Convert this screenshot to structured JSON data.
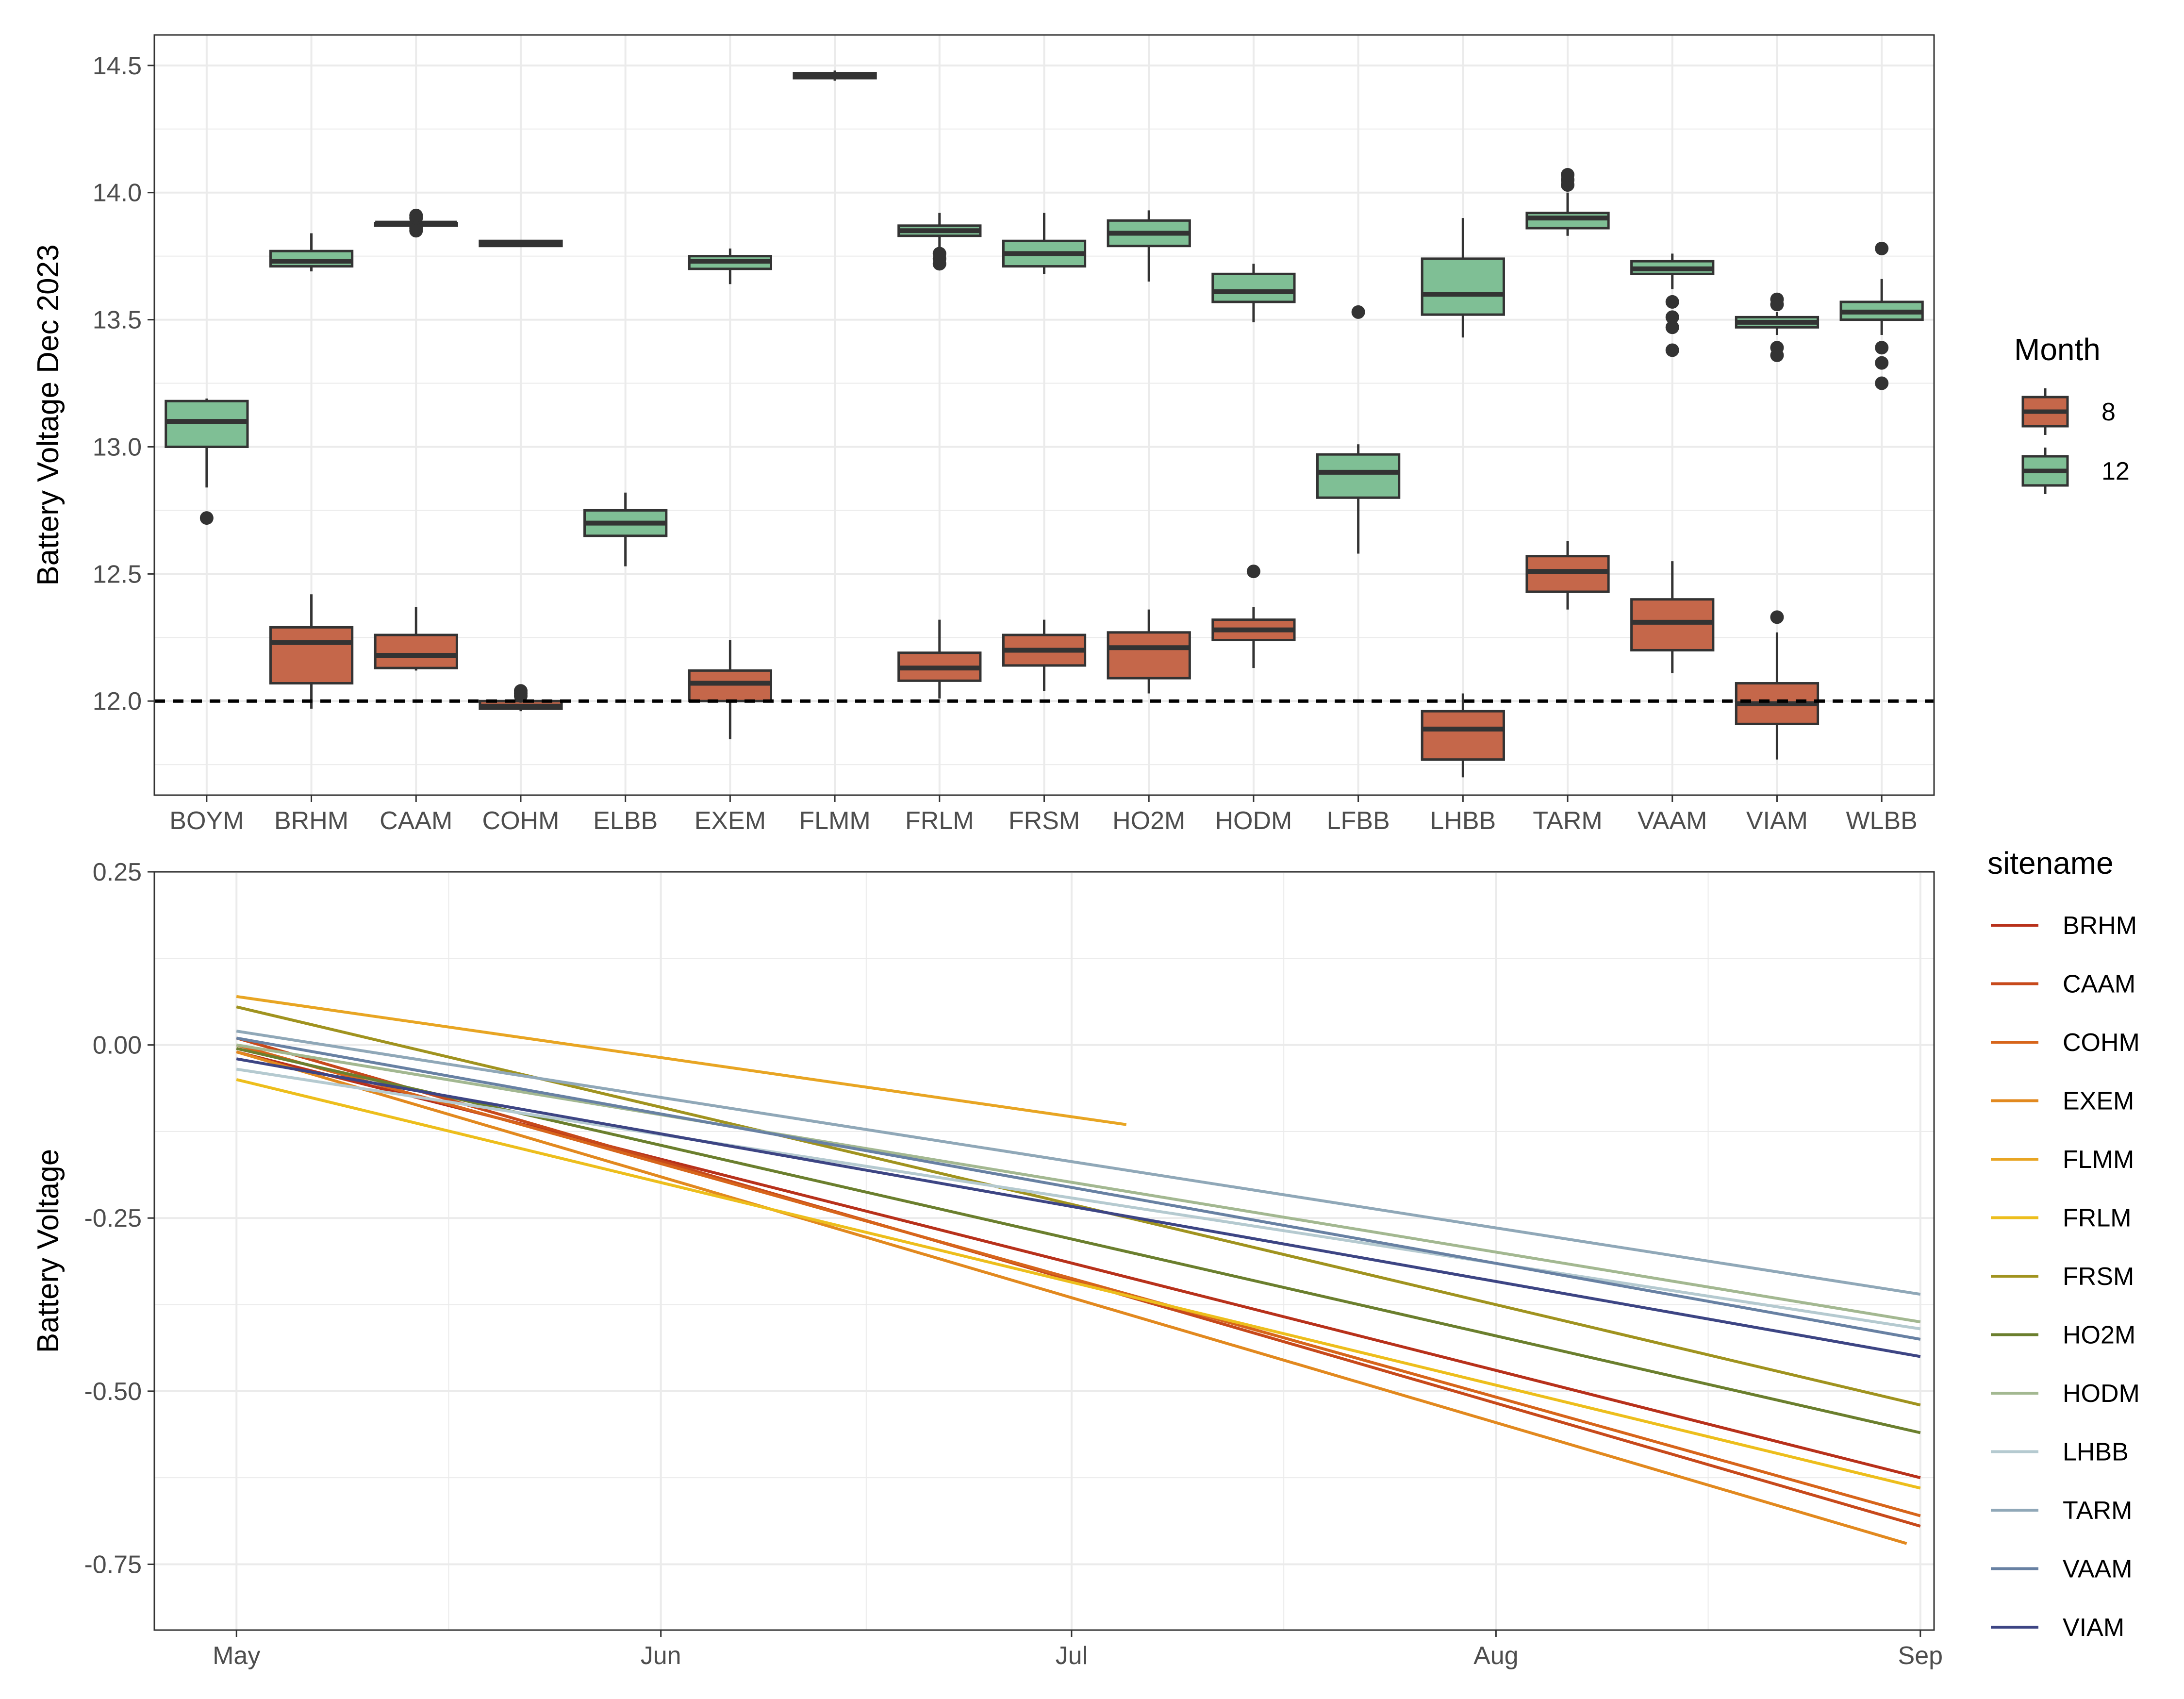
{
  "colors": {
    "month_8": "#C5674A",
    "month_12": "#7FBF95",
    "box_outline": "#333333",
    "grid": "#EBEBEB",
    "reference_line": "#000000"
  },
  "chart_data": [
    {
      "type": "boxplot",
      "ylabel": "Battery Voltage Dec 2023",
      "xlabel": "",
      "ylim": [
        11.63,
        14.62
      ],
      "yticks": [
        12.0,
        12.5,
        13.0,
        13.5,
        14.0,
        14.5
      ],
      "ytick_labels": [
        "12.0",
        "12.5",
        "13.0",
        "13.5",
        "14.0",
        "14.5"
      ],
      "categories": [
        "BOYM",
        "BRHM",
        "CAAM",
        "COHM",
        "ELBB",
        "EXEM",
        "FLMM",
        "FRLM",
        "FRSM",
        "HO2M",
        "HODM",
        "LFBB",
        "LHBB",
        "TARM",
        "VAAM",
        "VIAM",
        "WLBB"
      ],
      "reference_line_y": 12.0,
      "grid": true,
      "legend": {
        "title": "Month",
        "position": "right",
        "entries": [
          {
            "label": "8",
            "color": "#C5674A"
          },
          {
            "label": "12",
            "color": "#7FBF95"
          }
        ]
      },
      "series": [
        {
          "name": "8",
          "boxes": [
            {
              "category": "BRHM",
              "whisker_low": 11.97,
              "q1": 12.07,
              "median": 12.23,
              "q3": 12.29,
              "whisker_high": 12.42,
              "outliers": []
            },
            {
              "category": "CAAM",
              "whisker_low": 12.12,
              "q1": 12.13,
              "median": 12.18,
              "q3": 12.26,
              "whisker_high": 12.37,
              "outliers": []
            },
            {
              "category": "COHM",
              "whisker_low": 11.96,
              "q1": 11.97,
              "median": 11.98,
              "q3": 12.0,
              "whisker_high": 12.02,
              "outliers": [
                12.02,
                12.03,
                12.04
              ]
            },
            {
              "category": "EXEM",
              "whisker_low": 11.85,
              "q1": 12.0,
              "median": 12.07,
              "q3": 12.12,
              "whisker_high": 12.24,
              "outliers": []
            },
            {
              "category": "FRLM",
              "whisker_low": 12.01,
              "q1": 12.08,
              "median": 12.13,
              "q3": 12.19,
              "whisker_high": 12.32,
              "outliers": []
            },
            {
              "category": "FRSM",
              "whisker_low": 12.04,
              "q1": 12.14,
              "median": 12.2,
              "q3": 12.26,
              "whisker_high": 12.32,
              "outliers": []
            },
            {
              "category": "HO2M",
              "whisker_low": 12.03,
              "q1": 12.09,
              "median": 12.21,
              "q3": 12.27,
              "whisker_high": 12.36,
              "outliers": []
            },
            {
              "category": "HODM",
              "whisker_low": 12.13,
              "q1": 12.24,
              "median": 12.28,
              "q3": 12.32,
              "whisker_high": 12.37,
              "outliers": [
                12.51
              ]
            },
            {
              "category": "LHBB",
              "whisker_low": 11.7,
              "q1": 11.77,
              "median": 11.89,
              "q3": 11.96,
              "whisker_high": 12.03,
              "outliers": []
            },
            {
              "category": "TARM",
              "whisker_low": 12.36,
              "q1": 12.43,
              "median": 12.51,
              "q3": 12.57,
              "whisker_high": 12.63,
              "outliers": []
            },
            {
              "category": "VAAM",
              "whisker_low": 12.11,
              "q1": 12.2,
              "median": 12.31,
              "q3": 12.4,
              "whisker_high": 12.55,
              "outliers": []
            },
            {
              "category": "VIAM",
              "whisker_low": 11.77,
              "q1": 11.91,
              "median": 11.99,
              "q3": 12.07,
              "whisker_high": 12.27,
              "outliers": [
                12.33
              ]
            }
          ]
        },
        {
          "name": "12",
          "boxes": [
            {
              "category": "BOYM",
              "whisker_low": 12.84,
              "q1": 13.0,
              "median": 13.1,
              "q3": 13.18,
              "whisker_high": 13.19,
              "outliers": [
                12.72
              ]
            },
            {
              "category": "BRHM",
              "whisker_low": 13.69,
              "q1": 13.71,
              "median": 13.73,
              "q3": 13.77,
              "whisker_high": 13.84,
              "outliers": []
            },
            {
              "category": "CAAM",
              "whisker_low": 13.87,
              "q1": 13.87,
              "median": 13.88,
              "q3": 13.88,
              "whisker_high": 13.89,
              "outliers": [
                13.85,
                13.86,
                13.9,
                13.91
              ]
            },
            {
              "category": "COHM",
              "whisker_low": 13.79,
              "q1": 13.79,
              "median": 13.8,
              "q3": 13.81,
              "whisker_high": 13.81,
              "outliers": []
            },
            {
              "category": "ELBB",
              "whisker_low": 12.53,
              "q1": 12.65,
              "median": 12.7,
              "q3": 12.75,
              "whisker_high": 12.82,
              "outliers": []
            },
            {
              "category": "EXEM",
              "whisker_low": 13.64,
              "q1": 13.7,
              "median": 13.73,
              "q3": 13.75,
              "whisker_high": 13.78,
              "outliers": []
            },
            {
              "category": "FLMM",
              "whisker_low": 14.44,
              "q1": 14.45,
              "median": 14.46,
              "q3": 14.47,
              "whisker_high": 14.48,
              "outliers": []
            },
            {
              "category": "FRLM",
              "whisker_low": 13.77,
              "q1": 13.83,
              "median": 13.85,
              "q3": 13.87,
              "whisker_high": 13.92,
              "outliers": [
                13.72,
                13.74,
                13.76
              ]
            },
            {
              "category": "FRSM",
              "whisker_low": 13.68,
              "q1": 13.71,
              "median": 13.76,
              "q3": 13.81,
              "whisker_high": 13.92,
              "outliers": []
            },
            {
              "category": "HO2M",
              "whisker_low": 13.65,
              "q1": 13.79,
              "median": 13.84,
              "q3": 13.89,
              "whisker_high": 13.93,
              "outliers": []
            },
            {
              "category": "HODM",
              "whisker_low": 13.49,
              "q1": 13.57,
              "median": 13.61,
              "q3": 13.68,
              "whisker_high": 13.72,
              "outliers": []
            },
            {
              "category": "LFBB",
              "whisker_low": 12.58,
              "q1": 12.8,
              "median": 12.9,
              "q3": 12.97,
              "whisker_high": 13.01,
              "outliers": [
                13.53
              ]
            },
            {
              "category": "LHBB",
              "whisker_low": 13.43,
              "q1": 13.52,
              "median": 13.6,
              "q3": 13.74,
              "whisker_high": 13.9,
              "outliers": []
            },
            {
              "category": "TARM",
              "whisker_low": 13.83,
              "q1": 13.86,
              "median": 13.9,
              "q3": 13.92,
              "whisker_high": 14.0,
              "outliers": [
                14.03,
                14.05,
                14.07
              ]
            },
            {
              "category": "VAAM",
              "whisker_low": 13.62,
              "q1": 13.68,
              "median": 13.7,
              "q3": 13.73,
              "whisker_high": 13.76,
              "outliers": [
                13.38,
                13.47,
                13.51,
                13.57
              ]
            },
            {
              "category": "VIAM",
              "whisker_low": 13.44,
              "q1": 13.47,
              "median": 13.49,
              "q3": 13.51,
              "whisker_high": 13.53,
              "outliers": [
                13.36,
                13.39,
                13.56,
                13.58
              ]
            },
            {
              "category": "WLBB",
              "whisker_low": 13.44,
              "q1": 13.5,
              "median": 13.53,
              "q3": 13.57,
              "whisker_high": 13.66,
              "outliers": [
                13.25,
                13.33,
                13.39,
                13.78
              ]
            }
          ]
        }
      ]
    },
    {
      "type": "line",
      "ylabel": "Battery Voltage",
      "xlabel": "",
      "x_axis": "date",
      "xlim": [
        "2023-04-25",
        "2023-09-02"
      ],
      "xticks": [
        "2023-05-01",
        "2023-06-01",
        "2023-07-01",
        "2023-08-01",
        "2023-09-01"
      ],
      "xtick_labels": [
        "May",
        "Jun",
        "Jul",
        "Aug",
        "Sep"
      ],
      "ylim": [
        -0.845,
        0.25
      ],
      "yticks": [
        0.25,
        0.0,
        -0.25,
        -0.5,
        -0.75
      ],
      "ytick_labels": [
        "0.25",
        "0.00",
        "-0.25",
        "-0.50",
        "-0.75"
      ],
      "grid": true,
      "legend": {
        "title": "sitename",
        "position": "right"
      },
      "series": [
        {
          "name": "BRHM",
          "color": "#B8311B",
          "x": [
            "2023-05-01",
            "2023-09-01"
          ],
          "y": [
            -0.01,
            -0.625
          ]
        },
        {
          "name": "CAAM",
          "color": "#C7491B",
          "x": [
            "2023-05-01",
            "2023-09-01"
          ],
          "y": [
            0.01,
            -0.695
          ]
        },
        {
          "name": "COHM",
          "color": "#D7651B",
          "x": [
            "2023-05-01",
            "2023-09-01"
          ],
          "y": [
            0.0,
            -0.68
          ]
        },
        {
          "name": "EXEM",
          "color": "#E2891F",
          "x": [
            "2023-05-01",
            "2023-08-31"
          ],
          "y": [
            -0.01,
            -0.72
          ]
        },
        {
          "name": "FLMM",
          "color": "#E8A523",
          "x": [
            "2023-05-01",
            "2023-07-05"
          ],
          "y": [
            0.07,
            -0.115
          ]
        },
        {
          "name": "FRLM",
          "color": "#EDBE1C",
          "x": [
            "2023-05-01",
            "2023-09-01"
          ],
          "y": [
            -0.05,
            -0.64
          ]
        },
        {
          "name": "FRSM",
          "color": "#A0931F",
          "x": [
            "2023-05-01",
            "2023-09-01"
          ],
          "y": [
            0.055,
            -0.52
          ]
        },
        {
          "name": "HO2M",
          "color": "#6B7F2E",
          "x": [
            "2023-05-01",
            "2023-09-01"
          ],
          "y": [
            -0.005,
            -0.56
          ]
        },
        {
          "name": "HODM",
          "color": "#A3B891",
          "x": [
            "2023-05-01",
            "2023-09-01"
          ],
          "y": [
            0.0,
            -0.4
          ]
        },
        {
          "name": "LHBB",
          "color": "#B5CAD0",
          "x": [
            "2023-05-01",
            "2023-09-01"
          ],
          "y": [
            -0.035,
            -0.41
          ]
        },
        {
          "name": "TARM",
          "color": "#90A8B8",
          "x": [
            "2023-05-01",
            "2023-09-01"
          ],
          "y": [
            0.02,
            -0.36
          ]
        },
        {
          "name": "VAAM",
          "color": "#6881A3",
          "x": [
            "2023-05-01",
            "2023-09-01"
          ],
          "y": [
            0.01,
            -0.425
          ]
        },
        {
          "name": "VIAM",
          "color": "#3D4584",
          "x": [
            "2023-05-01",
            "2023-09-01"
          ],
          "y": [
            -0.02,
            -0.45
          ]
        }
      ]
    }
  ]
}
